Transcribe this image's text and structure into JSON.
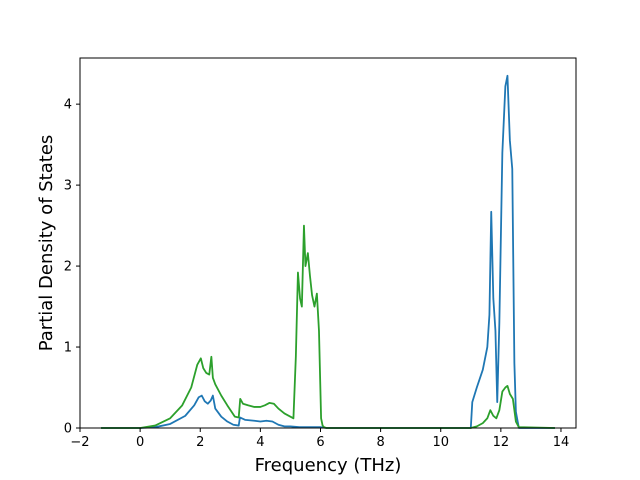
{
  "chart_data": {
    "type": "line",
    "xlabel": "Frequency (THz)",
    "ylabel": "Partial Density of States",
    "xlim": [
      -2,
      14.5
    ],
    "ylim": [
      0,
      4.57
    ],
    "xticks": [
      -2,
      0,
      2,
      4,
      6,
      8,
      10,
      12,
      14
    ],
    "yticks": [
      0,
      1,
      2,
      3,
      4
    ],
    "grid": false,
    "series": [
      {
        "color": "#1f77b4",
        "x": [
          -1.3,
          0,
          0.5,
          1.0,
          1.5,
          1.8,
          1.95,
          2.05,
          2.15,
          2.25,
          2.35,
          2.42,
          2.5,
          2.7,
          2.9,
          3.1,
          3.28,
          3.32,
          3.5,
          3.8,
          4.0,
          4.2,
          4.4,
          4.6,
          4.8,
          5.0,
          5.3,
          5.6,
          6.0,
          6.2,
          8.0,
          10.0,
          11.0,
          11.05,
          11.2,
          11.4,
          11.55,
          11.62,
          11.68,
          11.75,
          11.82,
          11.88,
          11.95,
          12.05,
          12.15,
          12.22,
          12.3,
          12.38,
          12.45,
          12.5,
          12.6,
          13.8
        ],
        "values": [
          0,
          0,
          0.01,
          0.05,
          0.15,
          0.28,
          0.38,
          0.4,
          0.33,
          0.3,
          0.34,
          0.4,
          0.24,
          0.14,
          0.08,
          0.04,
          0.03,
          0.13,
          0.1,
          0.09,
          0.08,
          0.09,
          0.08,
          0.04,
          0.02,
          0.02,
          0.01,
          0.01,
          0.01,
          0,
          0,
          0,
          0,
          0.32,
          0.5,
          0.72,
          1.0,
          1.4,
          2.67,
          1.6,
          1.2,
          0.32,
          1.3,
          3.4,
          4.22,
          4.35,
          3.55,
          3.2,
          0.8,
          0.2,
          0,
          0
        ]
      },
      {
        "color": "#2ca02c",
        "x": [
          -1.3,
          0,
          0.5,
          1.0,
          1.4,
          1.7,
          1.9,
          2.02,
          2.1,
          2.2,
          2.3,
          2.37,
          2.42,
          2.5,
          2.7,
          2.9,
          3.15,
          3.28,
          3.33,
          3.42,
          3.6,
          3.8,
          4.0,
          4.15,
          4.3,
          4.45,
          4.6,
          4.8,
          5.0,
          5.1,
          5.18,
          5.25,
          5.32,
          5.38,
          5.45,
          5.5,
          5.58,
          5.65,
          5.72,
          5.8,
          5.88,
          5.95,
          6.02,
          6.07,
          6.12,
          6.2,
          8.0,
          10.0,
          11.0,
          11.2,
          11.4,
          11.55,
          11.65,
          11.75,
          11.85,
          11.95,
          12.05,
          12.15,
          12.22,
          12.3,
          12.4,
          12.5,
          12.6,
          13.8
        ],
        "values": [
          0,
          0,
          0.03,
          0.12,
          0.28,
          0.5,
          0.78,
          0.86,
          0.74,
          0.68,
          0.66,
          0.88,
          0.62,
          0.54,
          0.4,
          0.28,
          0.14,
          0.13,
          0.36,
          0.3,
          0.28,
          0.26,
          0.26,
          0.28,
          0.31,
          0.3,
          0.24,
          0.18,
          0.14,
          0.12,
          0.88,
          1.92,
          1.6,
          1.5,
          2.5,
          2.0,
          2.16,
          1.88,
          1.64,
          1.5,
          1.66,
          1.2,
          0.12,
          0.03,
          0.01,
          0,
          0,
          0,
          0,
          0.02,
          0.06,
          0.12,
          0.22,
          0.15,
          0.12,
          0.22,
          0.45,
          0.5,
          0.52,
          0.42,
          0.36,
          0.08,
          0.01,
          0
        ]
      }
    ]
  }
}
